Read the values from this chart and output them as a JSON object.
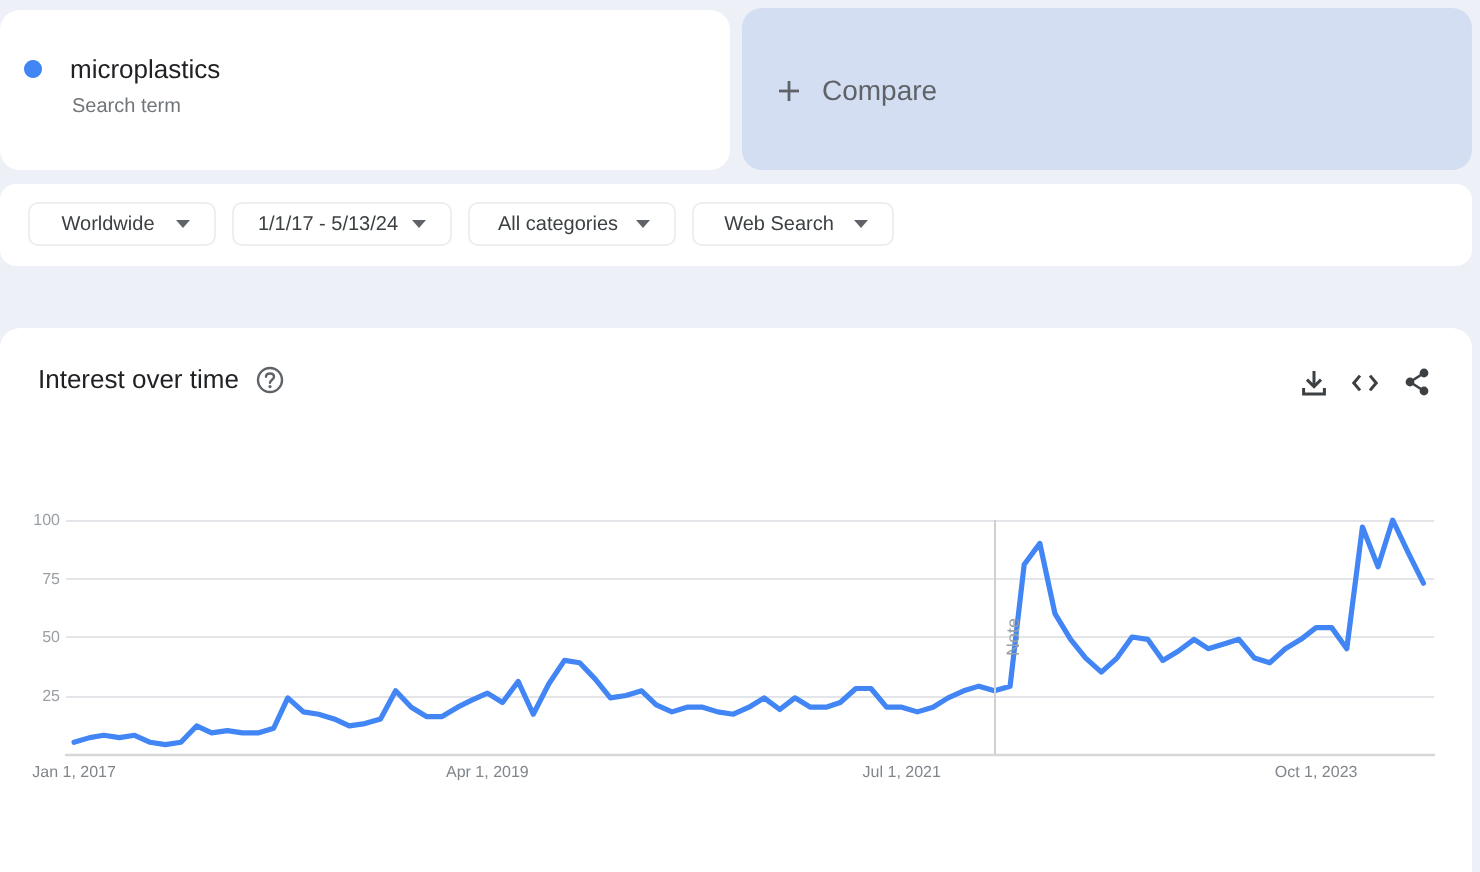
{
  "chart_data": {
    "type": "line",
    "title": "Interest over time",
    "annotations": [
      "Search term",
      "Compare",
      "Worldwide",
      "1/1/17 - 5/13/24",
      "All categories",
      "Web Search"
    ],
    "x": [
      "2017-01",
      "2017-02",
      "2017-03",
      "2017-04",
      "2017-05",
      "2017-06",
      "2017-07",
      "2017-08",
      "2017-09",
      "2017-10",
      "2017-11",
      "2017-12",
      "2018-01",
      "2018-02",
      "2018-03",
      "2018-04",
      "2018-05",
      "2018-06",
      "2018-07",
      "2018-08",
      "2018-09",
      "2018-10",
      "2018-11",
      "2018-12",
      "2019-01",
      "2019-02",
      "2019-03",
      "2019-04",
      "2019-05",
      "2019-06",
      "2019-07",
      "2019-08",
      "2019-09",
      "2019-10",
      "2019-11",
      "2019-12",
      "2020-01",
      "2020-02",
      "2020-03",
      "2020-04",
      "2020-05",
      "2020-06",
      "2020-07",
      "2020-08",
      "2020-09",
      "2020-10",
      "2020-11",
      "2020-12",
      "2021-01",
      "2021-02",
      "2021-03",
      "2021-04",
      "2021-05",
      "2021-06",
      "2021-07",
      "2021-08",
      "2021-09",
      "2021-10",
      "2021-11",
      "2021-12",
      "2022-01",
      "2022-02",
      "2022-03",
      "2022-04",
      "2022-05",
      "2022-06",
      "2022-07",
      "2022-08",
      "2022-09",
      "2022-10",
      "2022-11",
      "2022-12",
      "2023-01",
      "2023-02",
      "2023-03",
      "2023-04",
      "2023-05",
      "2023-06",
      "2023-07",
      "2023-08",
      "2023-09",
      "2023-10",
      "2023-11",
      "2023-12",
      "2024-01",
      "2024-02",
      "2024-03",
      "2024-04",
      "2024-05"
    ],
    "series": [
      {
        "name": "microplastics",
        "color": "#4285f4",
        "values": [
          5,
          7,
          8,
          7,
          8,
          5,
          4,
          5,
          12,
          9,
          10,
          9,
          9,
          11,
          24,
          18,
          17,
          15,
          12,
          13,
          15,
          27,
          20,
          16,
          16,
          20,
          23,
          26,
          22,
          31,
          17,
          30,
          40,
          39,
          32,
          24,
          25,
          27,
          21,
          18,
          20,
          20,
          18,
          17,
          20,
          24,
          19,
          24,
          20,
          20,
          22,
          28,
          28,
          20,
          20,
          18,
          20,
          24,
          27,
          29,
          27,
          29,
          81,
          90,
          60,
          49,
          41,
          35,
          41,
          50,
          49,
          40,
          44,
          49,
          45,
          47,
          49,
          41,
          39,
          45,
          49,
          54,
          54,
          45,
          97,
          80,
          100,
          86,
          73
        ]
      }
    ],
    "xlim": [
      "2016-12-16",
      "2024-05-22"
    ],
    "xticks": [
      {
        "value": "2017-01-01",
        "label": "Jan 1, 2017"
      },
      {
        "value": "2019-04-01",
        "label": "Apr 1, 2019"
      },
      {
        "value": "2021-07-01",
        "label": "Jul 1, 2021"
      },
      {
        "value": "2023-10-01",
        "label": "Oct 1, 2023"
      }
    ],
    "ylim": [
      0,
      100
    ],
    "yticks": [
      25,
      50,
      75,
      100
    ],
    "grid": "y",
    "legend": "top left",
    "marker": "none",
    "line_style": "solid",
    "ref_lines": [
      {
        "axis": "x",
        "value": "2022-01",
        "label": "Note",
        "color": "#d0d0d0"
      }
    ]
  }
}
